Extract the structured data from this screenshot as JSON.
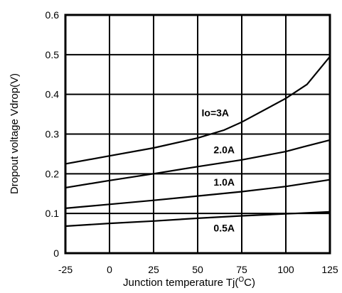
{
  "chart_data": {
    "type": "line",
    "xlabel": "Junction temperature Tj(",
    "xlabel_sup": "O",
    "xlabel_tail": "C)",
    "ylabel": "Dropout voltage Vdrop(V)",
    "xlim": [
      -25,
      125
    ],
    "ylim": [
      0,
      0.6
    ],
    "xticks": [
      -25,
      0,
      25,
      50,
      75,
      100,
      125
    ],
    "yticks": [
      0,
      0.1,
      0.2,
      0.3,
      0.4,
      0.5,
      0.6
    ],
    "xtick_labels": [
      "-25",
      "0",
      "25",
      "50",
      "75",
      "100",
      "125"
    ],
    "ytick_labels": [
      "0",
      "0.1",
      "0.2",
      "0.3",
      "0.4",
      "0.5",
      "0.6"
    ],
    "grid": true,
    "series": [
      {
        "name": "0.5A",
        "label_at": [
          65,
          0.055
        ],
        "x": [
          -25,
          0,
          25,
          50,
          75,
          100,
          125
        ],
        "values": [
          0.068,
          0.075,
          0.081,
          0.088,
          0.094,
          0.099,
          0.104
        ]
      },
      {
        "name": "1.0A",
        "label_at": [
          65,
          0.17
        ],
        "x": [
          -25,
          0,
          25,
          50,
          75,
          100,
          125
        ],
        "values": [
          0.113,
          0.123,
          0.133,
          0.144,
          0.155,
          0.168,
          0.185
        ]
      },
      {
        "name": "2.0A",
        "label_at": [
          65,
          0.252
        ],
        "x": [
          -25,
          0,
          25,
          50,
          75,
          100,
          110,
          125
        ],
        "values": [
          0.165,
          0.183,
          0.2,
          0.218,
          0.235,
          0.256,
          0.268,
          0.285
        ]
      },
      {
        "name": "Io=3A",
        "label_at": [
          60,
          0.345
        ],
        "x": [
          -25,
          0,
          25,
          50,
          65,
          75,
          100,
          112,
          125
        ],
        "values": [
          0.225,
          0.245,
          0.265,
          0.29,
          0.31,
          0.33,
          0.39,
          0.425,
          0.495
        ]
      }
    ]
  }
}
